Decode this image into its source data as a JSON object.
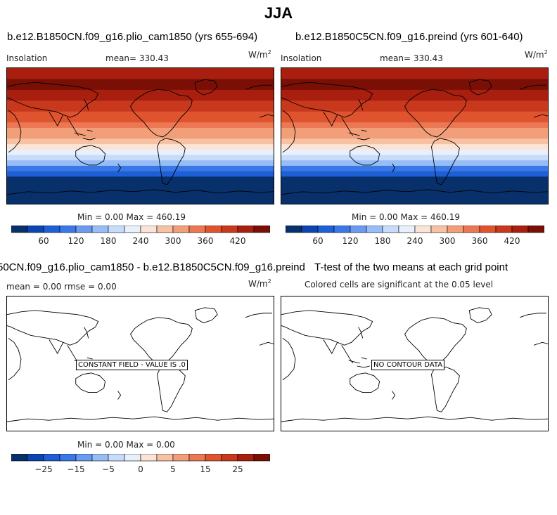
{
  "figure": {
    "title": "JJA"
  },
  "colors": {
    "palette": [
      "#08306b",
      "#0b45b0",
      "#1f5fd6",
      "#3b78e7",
      "#6a9bf0",
      "#97bdf6",
      "#c7dcfa",
      "#e8f0fb",
      "#fbe4d5",
      "#f7c2a4",
      "#f29e79",
      "#ec7753",
      "#e0532f",
      "#c8381c",
      "#a81f10",
      "#7a0f06"
    ]
  },
  "panels": [
    {
      "title": "b.e12.B1850CN.f09_g16.plio_cam1850 (yrs 655-694)",
      "left_label": "Insolation",
      "center_label": "mean= 330.43",
      "units": "W/m",
      "units_exp": "2",
      "minmax": "Min =    0.00 Max = 460.19",
      "colorbar_labels": [
        "60",
        "120",
        "180",
        "240",
        "300",
        "360",
        "420"
      ]
    },
    {
      "title": "b.e12.B1850C5CN.f09_g16.preind (yrs 601-640)",
      "left_label": "Insolation",
      "center_label": "mean= 330.43",
      "units": "W/m",
      "units_exp": "2",
      "minmax": "Min =    0.00 Max = 460.19",
      "colorbar_labels": [
        "60",
        "120",
        "180",
        "240",
        "300",
        "360",
        "420"
      ]
    },
    {
      "title": "50CN.f09_g16.plio_cam1850 - b.e12.B1850C5CN.f09_g16.preind",
      "left_label": "mean =    0.00     rmse =    0.00",
      "units": "W/m",
      "units_exp": "2",
      "note": "CONSTANT FIELD - VALUE IS .0",
      "minmax": "Min =    0.00 Max =    0.00",
      "colorbar_labels": [
        "−25",
        "−15",
        "−5",
        "0",
        "5",
        "15",
        "25"
      ]
    },
    {
      "title": "T-test of the two means at each grid point",
      "subtitle": "Colored cells are significant at the 0.05 level",
      "note": "NO CONTOUR DATA"
    }
  ],
  "chart_data": [
    {
      "type": "heatmap",
      "title": "b.e12.B1850CN.f09_g16.plio_cam1850 (yrs 655-694)",
      "variable": "Insolation",
      "units": "W/m2",
      "mean": 330.43,
      "min": 0.0,
      "max": 460.19,
      "levels": [
        30,
        60,
        90,
        120,
        150,
        180,
        210,
        240,
        270,
        300,
        330,
        360,
        390,
        420,
        450
      ],
      "colorbar_tick_labels": [
        60,
        120,
        180,
        240,
        300,
        360,
        420
      ],
      "band_values_north_to_south": [
        420,
        440,
        455,
        455,
        445,
        430,
        415,
        400,
        385,
        365,
        345,
        325,
        300,
        275,
        245,
        215,
        185,
        150,
        110,
        70,
        25,
        5,
        0,
        0,
        0
      ]
    },
    {
      "type": "heatmap",
      "title": "b.e12.B1850C5CN.f09_g16.preind (yrs 601-640)",
      "variable": "Insolation",
      "units": "W/m2",
      "mean": 330.43,
      "min": 0.0,
      "max": 460.19,
      "levels": [
        30,
        60,
        90,
        120,
        150,
        180,
        210,
        240,
        270,
        300,
        330,
        360,
        390,
        420,
        450
      ],
      "colorbar_tick_labels": [
        60,
        120,
        180,
        240,
        300,
        360,
        420
      ],
      "band_values_north_to_south": [
        420,
        440,
        455,
        455,
        445,
        430,
        415,
        400,
        385,
        365,
        345,
        325,
        300,
        275,
        245,
        215,
        185,
        150,
        110,
        70,
        25,
        5,
        0,
        0,
        0
      ]
    },
    {
      "type": "heatmap",
      "title": "50CN.f09_g16.plio_cam1850 - b.e12.B1850C5CN.f09_g16.preind",
      "units": "W/m2",
      "mean": 0.0,
      "rmse": 0.0,
      "min": 0.0,
      "max": 0.0,
      "levels": [
        -30,
        -25,
        -20,
        -15,
        -10,
        -5,
        0,
        5,
        10,
        15,
        20,
        25,
        30
      ],
      "colorbar_tick_labels": [
        -25,
        -15,
        -5,
        0,
        5,
        15,
        25
      ]
    },
    {
      "type": "heatmap",
      "title": "T-test of the two means at each grid point",
      "subtitle": "Colored cells are significant at the 0.05 level"
    }
  ]
}
